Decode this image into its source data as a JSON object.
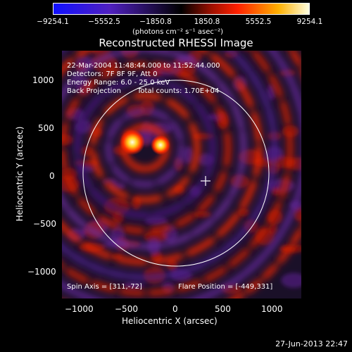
{
  "colorbar": {
    "ticks": [
      "−9254.1",
      "−5552.5",
      "−1850.8",
      "1850.8",
      "5552.5",
      "9254.1"
    ],
    "units": "(photons cm⁻² s⁻¹ asec⁻²)"
  },
  "title": "Reconstructed RHESSI Image",
  "annotations": {
    "time": "22-Mar-2004 11:48:44.000 to 11:52:44.000",
    "detectors": "Detectors: 7F 8F 9F, Att 0",
    "energy": "Energy Range: 6.0 - 25.0 keV",
    "method": "Back Projection",
    "counts": "Total counts: 1.70E+04",
    "spin_axis": "Spin Axis = [311,-72]",
    "flare_position": "Flare Position = [-449,331]"
  },
  "axes": {
    "xlabel": "Heliocentric X (arcsec)",
    "ylabel": "Heliocentric Y (arcsec)",
    "xticks": [
      "−1000",
      "−500",
      "0",
      "500",
      "1000"
    ],
    "yticks": [
      "1000",
      "500",
      "0",
      "−500",
      "−1000"
    ]
  },
  "timestamp": "27-Jun-2013 22:47",
  "colors": {
    "low": "#1010ff",
    "mid": "#000000",
    "high": "#ff2000",
    "peak": "#ffffe0"
  }
}
